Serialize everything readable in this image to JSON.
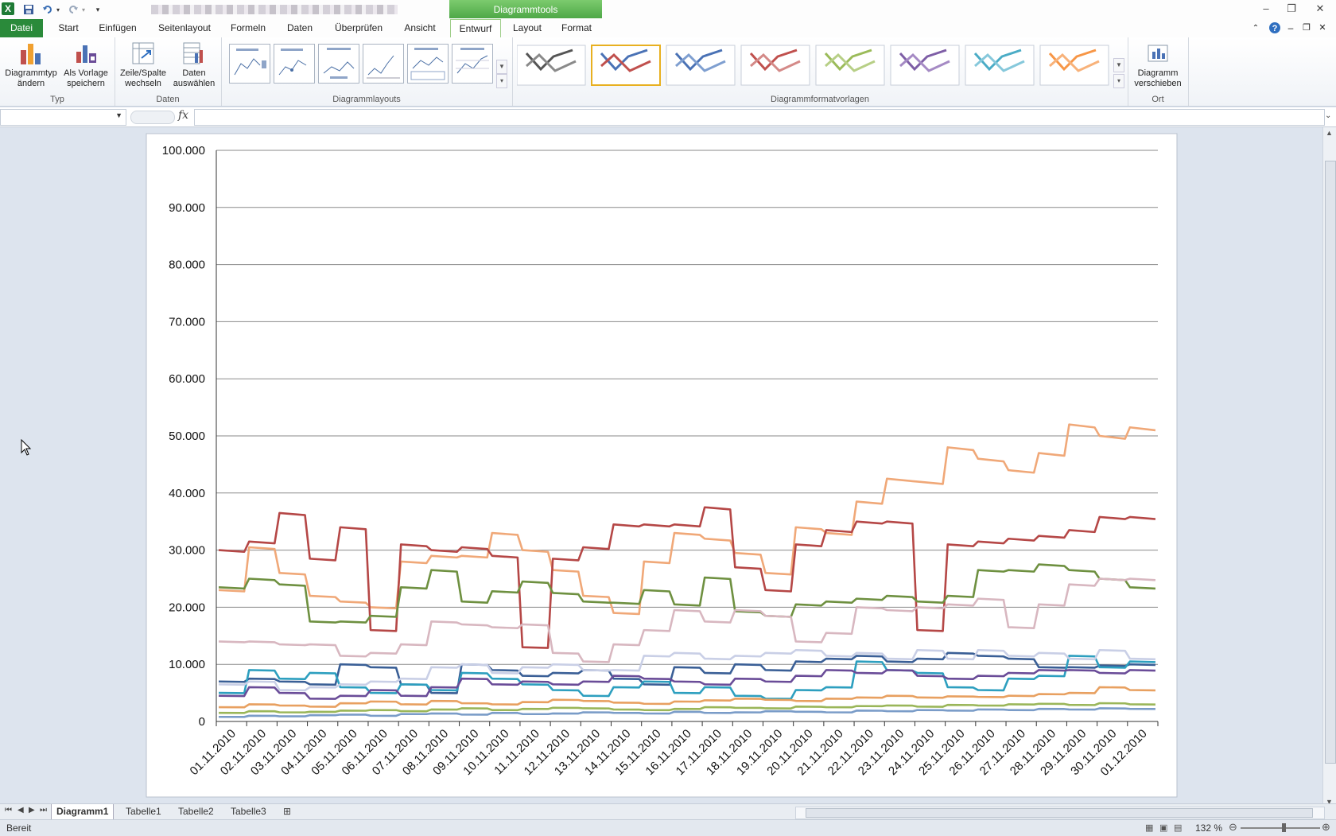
{
  "tabs": {
    "datei": "Datei",
    "start": "Start",
    "einfuegen": "Einfügen",
    "seitenlayout": "Seitenlayout",
    "formeln": "Formeln",
    "daten": "Daten",
    "ueberpruefen": "Überprüfen",
    "ansicht": "Ansicht",
    "entwurf": "Entwurf",
    "layout": "Layout",
    "format": "Format",
    "context_title": "Diagrammtools"
  },
  "ribbon": {
    "typ": {
      "label": "Typ",
      "diagrammtyp": [
        "Diagrammtyp",
        "ändern"
      ],
      "vorlage": [
        "Als Vorlage",
        "speichern"
      ]
    },
    "daten": {
      "label": "Daten",
      "zeile_spalte": [
        "Zeile/Spalte",
        "wechseln"
      ],
      "auswaehlen": [
        "Daten",
        "auswählen"
      ]
    },
    "layouts": {
      "label": "Diagrammlayouts"
    },
    "formatvorlagen": {
      "label": "Diagrammformatvorlagen",
      "colors": [
        [
          "#555555",
          "#8a8a8a",
          "#b0b0b0"
        ],
        [
          "#4a72b5",
          "#c0504d",
          "#4a72b5"
        ],
        [
          "#4a72b5",
          "#7f9fd0",
          "#a8bfe0"
        ],
        [
          "#c0504d",
          "#d48a88",
          "#e0aaa8"
        ],
        [
          "#9bbb59",
          "#b7cf86",
          "#cfe0ae"
        ],
        [
          "#7e5ea6",
          "#a58ac4",
          "#c4b2da"
        ],
        [
          "#4bacc6",
          "#86c8db",
          "#b0dbe8"
        ],
        [
          "#f79646",
          "#f8b27a",
          "#fbcda6"
        ]
      ]
    },
    "ort": {
      "label": "Ort",
      "verschieben": [
        "Diagramm",
        "verschieben"
      ]
    }
  },
  "formula": {
    "fx": "fx"
  },
  "chart_data": {
    "type": "line",
    "categories": [
      "01.11.2010",
      "02.11.2010",
      "03.11.2010",
      "04.11.2010",
      "05.11.2010",
      "06.11.2010",
      "07.11.2010",
      "08.11.2010",
      "09.11.2010",
      "10.11.2010",
      "11.11.2010",
      "12.11.2010",
      "13.11.2010",
      "14.11.2010",
      "15.11.2010",
      "16.11.2010",
      "17.11.2010",
      "18.11.2010",
      "19.11.2010",
      "20.11.2010",
      "21.11.2010",
      "22.11.2010",
      "23.11.2010",
      "24.11.2010",
      "25.11.2010",
      "26.11.2010",
      "27.11.2010",
      "28.11.2010",
      "29.11.2010",
      "30.11.2010",
      "01.12.2010"
    ],
    "y_ticks": [
      "0",
      "10.000",
      "20.000",
      "30.000",
      "40.000",
      "50.000",
      "60.000",
      "70.000",
      "80.000",
      "90.000",
      "100.000"
    ],
    "ylim": [
      0,
      100000
    ],
    "grid": true,
    "legend": "none",
    "series": [
      {
        "color": "#f0a878",
        "values": [
          23000,
          30500,
          26000,
          22000,
          21000,
          20000,
          28000,
          29000,
          29000,
          33000,
          30000,
          26500,
          22000,
          19000,
          28000,
          33000,
          32000,
          29500,
          26000,
          34000,
          33000,
          38500,
          42500,
          42000,
          48000,
          46000,
          44000,
          47000,
          52000,
          50000,
          51500
        ]
      },
      {
        "color": "#b54746",
        "values": [
          30000,
          31500,
          36500,
          28500,
          34000,
          16000,
          31000,
          30000,
          30500,
          29000,
          13000,
          28500,
          30500,
          34500,
          34500,
          34500,
          37500,
          27000,
          23000,
          31000,
          33500,
          35000,
          35000,
          16000,
          31000,
          31500,
          32000,
          32500,
          33500,
          35800,
          35800
        ]
      },
      {
        "color": "#6e9040",
        "values": [
          23500,
          25000,
          24000,
          17500,
          17500,
          18500,
          23500,
          26500,
          21000,
          22800,
          24500,
          22500,
          21000,
          20800,
          23000,
          20500,
          25200,
          19300,
          18500,
          20500,
          21000,
          21500,
          22000,
          21000,
          22000,
          26500,
          26500,
          27500,
          26500,
          25000,
          23500
        ]
      },
      {
        "color": "#d8b7c0",
        "values": [
          14000,
          14000,
          13500,
          13500,
          11500,
          12000,
          13500,
          17500,
          17000,
          16500,
          17000,
          12000,
          10500,
          13500,
          16000,
          19500,
          17500,
          19500,
          18500,
          14000,
          15500,
          20000,
          19500,
          20000,
          20500,
          21500,
          16500,
          20500,
          24000,
          25000,
          25000
        ]
      },
      {
        "color": "#3a5f96",
        "values": [
          7000,
          7500,
          7000,
          6500,
          10000,
          9500,
          6500,
          5000,
          10000,
          9000,
          8000,
          8500,
          9000,
          7500,
          6500,
          9500,
          8500,
          10000,
          9000,
          10500,
          11000,
          11500,
          10500,
          11000,
          12000,
          11500,
          11000,
          9500,
          9500,
          9800,
          10000
        ]
      },
      {
        "color": "#2d9fbf",
        "values": [
          5000,
          9000,
          7500,
          8500,
          6000,
          5000,
          6500,
          5500,
          8500,
          7500,
          6500,
          5500,
          4500,
          6000,
          7000,
          5000,
          6000,
          4500,
          4000,
          5500,
          6000,
          10500,
          9000,
          8500,
          6000,
          5500,
          7500,
          8000,
          11500,
          9500,
          10500
        ]
      },
      {
        "color": "#c9cfe6",
        "values": [
          6500,
          7000,
          5500,
          6000,
          6500,
          7000,
          7500,
          9500,
          10000,
          8500,
          9500,
          10000,
          9000,
          9000,
          11500,
          12000,
          11000,
          11500,
          12000,
          12500,
          11500,
          12000,
          11000,
          12500,
          11000,
          12500,
          11500,
          12000,
          11000,
          12500,
          11000
        ]
      },
      {
        "color": "#6a4c98",
        "values": [
          4500,
          6000,
          5000,
          4000,
          4500,
          5500,
          4500,
          6000,
          7500,
          6500,
          7000,
          6500,
          7000,
          8000,
          7500,
          7000,
          6500,
          7500,
          7000,
          8000,
          9000,
          8500,
          9000,
          8000,
          7500,
          8000,
          8500,
          9000,
          9000,
          8500,
          9000
        ]
      },
      {
        "color": "#e8a060",
        "values": [
          2500,
          3000,
          2800,
          2600,
          3200,
          3500,
          3000,
          3600,
          3200,
          3000,
          3400,
          3800,
          3600,
          3300,
          3100,
          3500,
          3700,
          4000,
          3800,
          3600,
          4000,
          4200,
          4500,
          4200,
          4400,
          4300,
          4500,
          4800,
          5000,
          6000,
          5500
        ]
      },
      {
        "color": "#9ab659",
        "values": [
          1500,
          1800,
          1600,
          1700,
          1900,
          2000,
          1800,
          2100,
          2300,
          2000,
          2200,
          2400,
          2300,
          2100,
          2000,
          2200,
          2500,
          2400,
          2300,
          2600,
          2500,
          2700,
          2800,
          2600,
          2900,
          2800,
          3000,
          3100,
          2900,
          3200,
          3000
        ]
      },
      {
        "color": "#7a9cc8",
        "values": [
          800,
          1000,
          900,
          1100,
          1200,
          1000,
          1300,
          1400,
          1200,
          1500,
          1300,
          1400,
          1600,
          1500,
          1400,
          1700,
          1500,
          1600,
          1800,
          1700,
          1600,
          1900,
          1800,
          2000,
          1900,
          2100,
          2000,
          2200,
          2100,
          2300,
          2200
        ]
      }
    ]
  },
  "sheets": [
    "Diagramm1",
    "Tabelle1",
    "Tabelle2",
    "Tabelle3"
  ],
  "status": {
    "text": "Bereit",
    "zoom": "132 %"
  }
}
